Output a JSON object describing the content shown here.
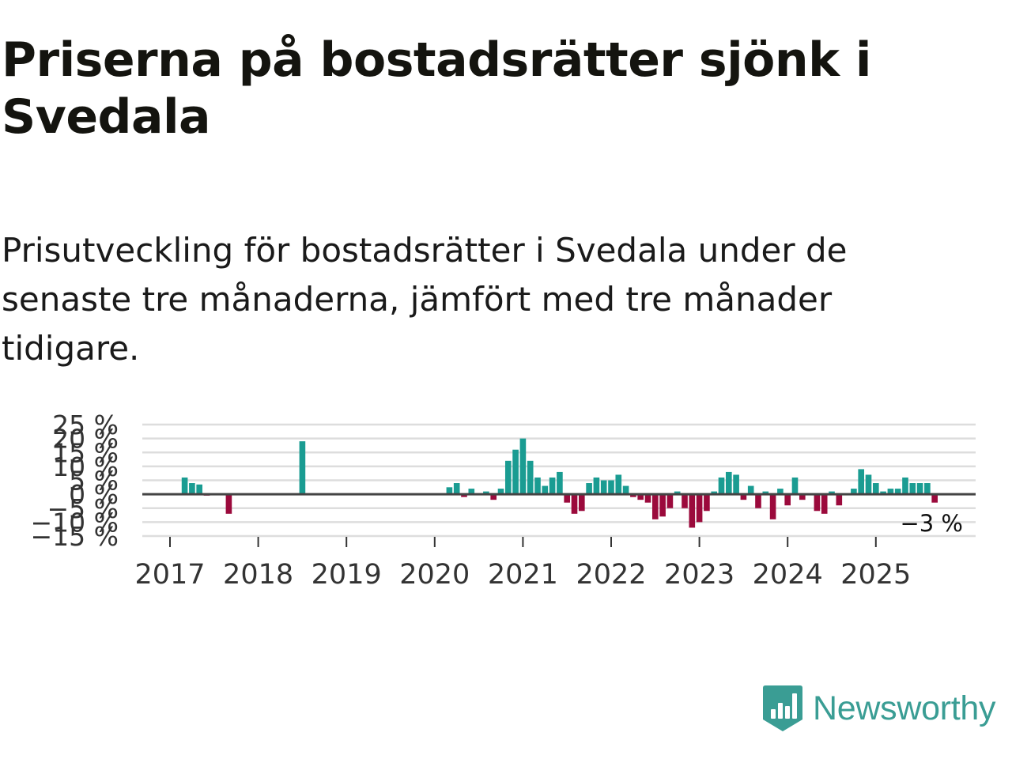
{
  "title": "Priserna på bostadsrätter sjönk i Svedala",
  "subtitle": "Prisutveckling för bostadsrätter i Svedala under de senaste tre månaderna, jämfört med tre månader tidigare.",
  "brand": {
    "name": "Newsworthy",
    "color": "#3a9d94"
  },
  "colors": {
    "positive": "#1a9c92",
    "negative": "#9b0a3c",
    "zero_line": "#444444",
    "grid": "#dddddd"
  },
  "chart_data": {
    "type": "bar",
    "title": "Priserna på bostadsrätter sjönk i Svedala",
    "xlabel": "",
    "ylabel": "",
    "ylim": [
      -15,
      25
    ],
    "yticks": [
      25,
      20,
      15,
      10,
      5,
      0,
      -5,
      -10,
      -15
    ],
    "ytick_labels": [
      "25 %",
      "20 %",
      "15 %",
      "10 %",
      "5 %",
      "0 %",
      "−5 %",
      "−10 %",
      "−15 %"
    ],
    "xticks": [
      "2017",
      "2018",
      "2019",
      "2020",
      "2021",
      "2022",
      "2023",
      "2024",
      "2025"
    ],
    "start": "2017-01",
    "last_value_label": "−3 %",
    "series": [
      {
        "name": "Prisutveckling",
        "values": [
          null,
          null,
          6,
          4,
          3.5,
          -0.5,
          null,
          null,
          -7,
          null,
          null,
          null,
          null,
          null,
          null,
          null,
          null,
          null,
          19,
          null,
          null,
          null,
          null,
          null,
          null,
          null,
          null,
          null,
          null,
          null,
          null,
          null,
          null,
          null,
          null,
          null,
          null,
          null,
          2.5,
          4,
          -1,
          2,
          null,
          1,
          -2,
          2,
          12,
          16,
          20,
          12,
          6,
          3,
          6,
          8,
          -3,
          -7,
          -6,
          4,
          6,
          5,
          5,
          7,
          3,
          -1,
          -2,
          -3,
          -9,
          -8,
          -5,
          1,
          -5,
          -12,
          -10,
          -6,
          1,
          6,
          8,
          7,
          -2,
          3,
          -5,
          1,
          -9,
          2,
          -4,
          6,
          -2,
          null,
          -6,
          -7,
          1,
          -4,
          null,
          2,
          9,
          7,
          4,
          1,
          2,
          2,
          6,
          4,
          4,
          4,
          -3
        ]
      }
    ]
  }
}
